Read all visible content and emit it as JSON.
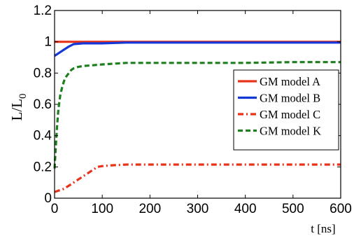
{
  "chart_data": {
    "type": "line",
    "title": "",
    "xlabel": "t [ns]",
    "ylabel": {
      "main": "L/L",
      "subscript": "0"
    },
    "xlim": [
      0,
      600
    ],
    "ylim": [
      0,
      1.2
    ],
    "xticks": [
      0,
      100,
      200,
      300,
      400,
      500,
      600
    ],
    "xtick_labels": [
      "0",
      "100",
      "200",
      "300",
      "400",
      "500",
      "600"
    ],
    "yticks": [
      0,
      0.2,
      0.4,
      0.6,
      0.8,
      1,
      1.2
    ],
    "ytick_labels": [
      "0",
      "0.2",
      "0.4",
      "0.6",
      "0.8",
      "1",
      "1.2"
    ],
    "grid": false,
    "legend_position": "right",
    "series": [
      {
        "name": "GM model A",
        "color": "#e8331b",
        "dash": "solid",
        "x": [
          0,
          20,
          50,
          100,
          150,
          200,
          250,
          300,
          350,
          400,
          450,
          500,
          550,
          600
        ],
        "y": [
          1.0,
          1.0,
          1.0,
          1.0,
          1.0,
          1.0,
          1.0,
          1.0,
          1.0,
          1.0,
          1.0,
          1.0,
          1.0,
          1.0
        ]
      },
      {
        "name": "GM model B",
        "color": "#1438d8",
        "dash": "solid",
        "x": [
          0,
          10,
          20,
          30,
          40,
          60,
          80,
          100,
          150,
          200,
          250,
          300,
          350,
          400,
          450,
          500,
          550,
          600
        ],
        "y": [
          0.91,
          0.93,
          0.95,
          0.97,
          0.985,
          0.99,
          0.99,
          0.99,
          0.995,
          0.995,
          0.995,
          0.995,
          0.995,
          0.995,
          0.995,
          0.995,
          0.995,
          0.995
        ]
      },
      {
        "name": "GM model C",
        "color": "#e8331b",
        "dash": "dashdot",
        "x": [
          0,
          10,
          20,
          30,
          40,
          50,
          60,
          70,
          80,
          90,
          100,
          120,
          150,
          200,
          300,
          400,
          500,
          600
        ],
        "y": [
          0.04,
          0.05,
          0.06,
          0.08,
          0.1,
          0.12,
          0.14,
          0.16,
          0.18,
          0.2,
          0.205,
          0.21,
          0.215,
          0.215,
          0.215,
          0.215,
          0.215,
          0.215
        ]
      },
      {
        "name": "GM model K",
        "color": "#1d7f1d",
        "dash": "dash",
        "x": [
          0,
          2,
          5,
          8,
          12,
          16,
          20,
          25,
          30,
          35,
          40,
          50,
          60,
          80,
          100,
          150,
          200,
          300,
          400,
          500,
          600
        ],
        "y": [
          0.19,
          0.3,
          0.45,
          0.57,
          0.66,
          0.71,
          0.75,
          0.78,
          0.8,
          0.82,
          0.83,
          0.84,
          0.845,
          0.85,
          0.855,
          0.865,
          0.865,
          0.865,
          0.865,
          0.87,
          0.87
        ]
      }
    ]
  }
}
